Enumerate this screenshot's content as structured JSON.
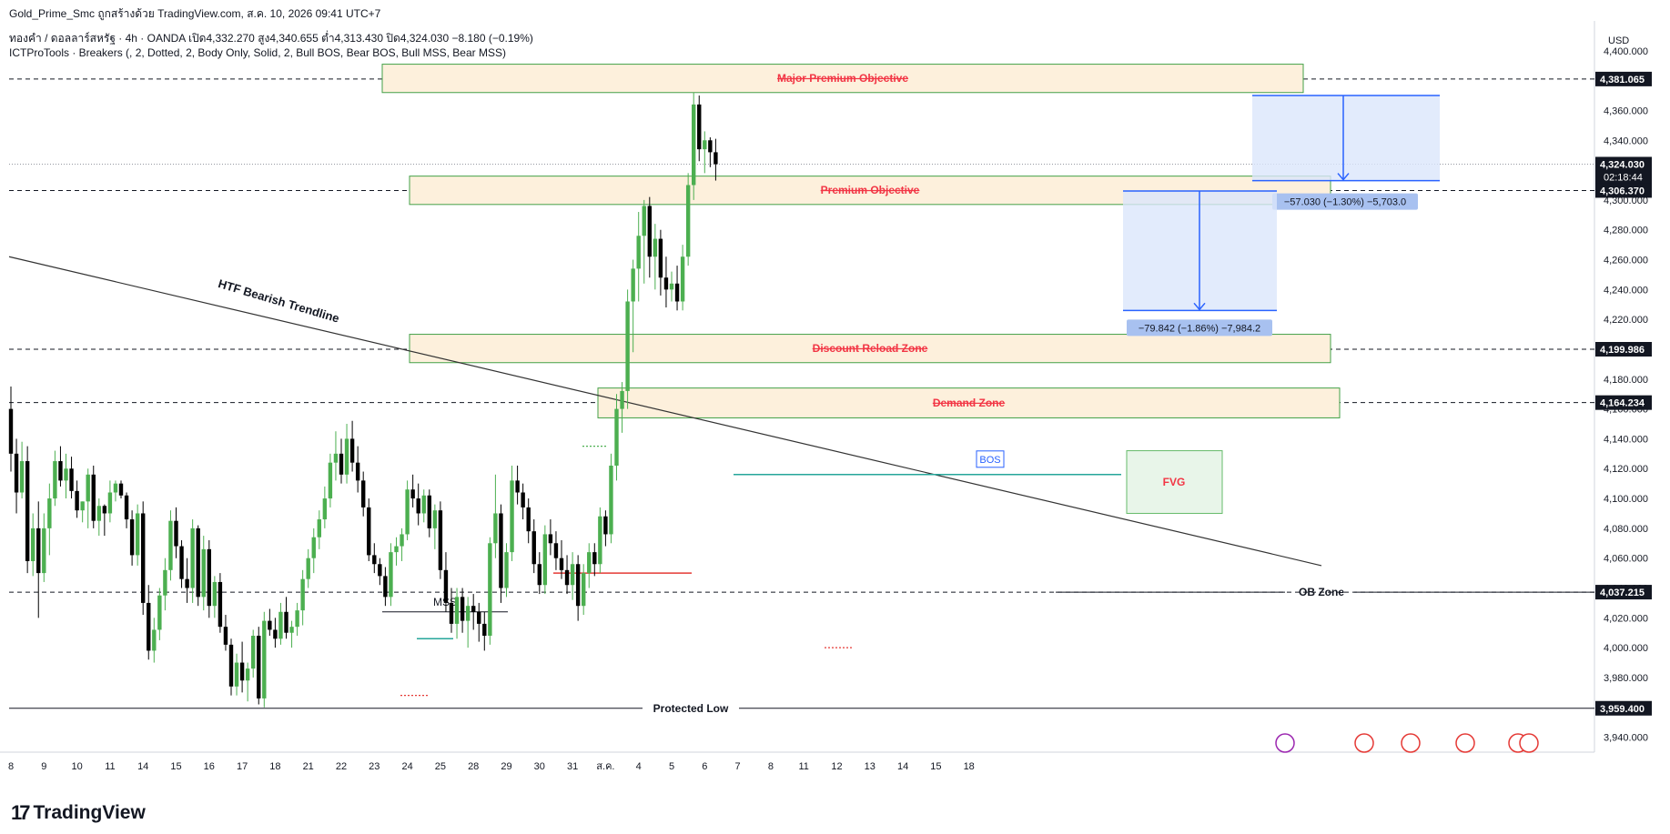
{
  "header": {
    "top_line": "Gold_Prime_Smc ถูกสร้างด้วย TradingView.com, ส.ค. 10, 2026 09:41 UTC+7",
    "symbol_line": "ทองคำ / ดอลลาร์สหรัฐ · 4h · OANDA  เปิด4,332.270  สูง4,340.655  ต่ำ4,313.430  ปิด4,324.030  −8.180 (−0.19%)",
    "indicator_line": "ICTProTools · Breakers (, 2, Dotted, 2, Body Only, Solid, 2, Bull BOS, Bear BOS, Bull MSS, Bear MSS)"
  },
  "footer": {
    "brand": "TradingView"
  },
  "colors": {
    "bull": "#4caf50",
    "bear": "#000000",
    "zone_fill": "#fdf0dc",
    "zone_border": "#43a047",
    "zone_text": "#f23645",
    "measure_fill": "#dbe6fb",
    "measure_line": "#2962ff",
    "bos": "#2962ff",
    "fvg_fill": "#e8f5e9",
    "trend_line": "#333333"
  },
  "chart_data": {
    "type": "candlestick",
    "currency": "USD",
    "ylim": [
      3930,
      4420
    ],
    "y_ticks": [
      {
        "v": 4400,
        "label": "4,400.000"
      },
      {
        "v": 4360,
        "label": "4,360.000"
      },
      {
        "v": 4340,
        "label": "4,340.000"
      },
      {
        "v": 4300,
        "label": "4,300.000"
      },
      {
        "v": 4280,
        "label": "4,280.000"
      },
      {
        "v": 4260,
        "label": "4,260.000"
      },
      {
        "v": 4240,
        "label": "4,240.000"
      },
      {
        "v": 4220,
        "label": "4,220.000"
      },
      {
        "v": 4180,
        "label": "4,180.000"
      },
      {
        "v": 4160,
        "label": "4,160.000"
      },
      {
        "v": 4140,
        "label": "4,140.000"
      },
      {
        "v": 4120,
        "label": "4,120.000"
      },
      {
        "v": 4100,
        "label": "4,100.000"
      },
      {
        "v": 4080,
        "label": "4,080.000"
      },
      {
        "v": 4060,
        "label": "4,060.000"
      },
      {
        "v": 4040,
        "label": "4,040.000"
      },
      {
        "v": 4020,
        "label": "4,020.000"
      },
      {
        "v": 4000,
        "label": "4,000.000"
      },
      {
        "v": 3980,
        "label": "3,980.000"
      },
      {
        "v": 3940,
        "label": "3,940.000"
      }
    ],
    "price_tags": [
      {
        "v": 4381.065,
        "label": "4,381.065"
      },
      {
        "v": 4324.03,
        "label": "4,324.030",
        "sub": "02:18:44"
      },
      {
        "v": 4306.37,
        "label": "4,306.370"
      },
      {
        "v": 4199.986,
        "label": "4,199.986"
      },
      {
        "v": 4164.234,
        "label": "4,164.234"
      },
      {
        "v": 4037.215,
        "label": "4,037.215"
      },
      {
        "v": 3959.4,
        "label": "3,959.400"
      }
    ],
    "x_ticks": [
      {
        "i": 0,
        "label": "8"
      },
      {
        "i": 6,
        "label": "9"
      },
      {
        "i": 12,
        "label": "10"
      },
      {
        "i": 18,
        "label": "11"
      },
      {
        "i": 24,
        "label": "14"
      },
      {
        "i": 30,
        "label": "15"
      },
      {
        "i": 36,
        "label": "16"
      },
      {
        "i": 42,
        "label": "17"
      },
      {
        "i": 48,
        "label": "18"
      },
      {
        "i": 54,
        "label": "21"
      },
      {
        "i": 60,
        "label": "22"
      },
      {
        "i": 66,
        "label": "23"
      },
      {
        "i": 72,
        "label": "24"
      },
      {
        "i": 78,
        "label": "25"
      },
      {
        "i": 84,
        "label": "28"
      },
      {
        "i": 90,
        "label": "29"
      },
      {
        "i": 96,
        "label": "30"
      },
      {
        "i": 102,
        "label": "31"
      },
      {
        "i": 108,
        "label": "ส.ค."
      },
      {
        "i": 114,
        "label": "4"
      },
      {
        "i": 120,
        "label": "5"
      },
      {
        "i": 126,
        "label": "6"
      },
      {
        "i": 132,
        "label": "7"
      },
      {
        "i": 138,
        "label": "8"
      },
      {
        "i": 144,
        "label": "11"
      },
      {
        "i": 150,
        "label": "12"
      },
      {
        "i": 156,
        "label": "13"
      },
      {
        "i": 162,
        "label": "14"
      },
      {
        "i": 168,
        "label": "15"
      },
      {
        "i": 174,
        "label": "18"
      }
    ],
    "candles": [
      [
        4160,
        4175,
        4118,
        4130
      ],
      [
        4130,
        4140,
        4090,
        4104
      ],
      [
        4104,
        4138,
        4100,
        4125
      ],
      [
        4125,
        4135,
        4050,
        4058
      ],
      [
        4058,
        4090,
        4048,
        4080
      ],
      [
        4080,
        4098,
        4020,
        4050
      ],
      [
        4050,
        4090,
        4044,
        4080
      ],
      [
        4080,
        4110,
        4062,
        4100
      ],
      [
        4100,
        4132,
        4095,
        4125
      ],
      [
        4125,
        4135,
        4108,
        4112
      ],
      [
        4112,
        4130,
        4100,
        4120
      ],
      [
        4120,
        4128,
        4100,
        4105
      ],
      [
        4105,
        4112,
        4087,
        4092
      ],
      [
        4092,
        4098,
        4084,
        4098
      ],
      [
        4098,
        4120,
        4080,
        4116
      ],
      [
        4116,
        4122,
        4080,
        4085
      ],
      [
        4085,
        4100,
        4075,
        4095
      ],
      [
        4095,
        4096,
        4075,
        4090
      ],
      [
        4090,
        4112,
        4084,
        4104
      ],
      [
        4104,
        4112,
        4098,
        4110
      ],
      [
        4110,
        4112,
        4100,
        4102
      ],
      [
        4102,
        4104,
        4080,
        4086
      ],
      [
        4086,
        4092,
        4055,
        4062
      ],
      [
        4062,
        4096,
        4055,
        4090
      ],
      [
        4090,
        4098,
        4022,
        4030
      ],
      [
        4030,
        4042,
        3992,
        3998
      ],
      [
        3998,
        4020,
        3990,
        4012
      ],
      [
        4012,
        4040,
        4005,
        4035
      ],
      [
        4035,
        4060,
        4025,
        4052
      ],
      [
        4052,
        4092,
        4045,
        4085
      ],
      [
        4085,
        4094,
        4060,
        4068
      ],
      [
        4068,
        4072,
        4040,
        4046
      ],
      [
        4046,
        4060,
        4030,
        4040
      ],
      [
        4040,
        4086,
        4030,
        4080
      ],
      [
        4080,
        4082,
        4028,
        4034
      ],
      [
        4034,
        4075,
        4025,
        4066
      ],
      [
        4066,
        4072,
        4020,
        4028
      ],
      [
        4028,
        4048,
        4020,
        4044
      ],
      [
        4044,
        4050,
        4010,
        4014
      ],
      [
        4014,
        4022,
        3998,
        4002
      ],
      [
        4002,
        4006,
        3968,
        3974
      ],
      [
        3974,
        3996,
        3968,
        3990
      ],
      [
        3990,
        4004,
        3970,
        3978
      ],
      [
        3978,
        3990,
        3964,
        3986
      ],
      [
        3986,
        4012,
        3980,
        4008
      ],
      [
        4008,
        4014,
        3962,
        3966
      ],
      [
        3966,
        4024,
        3960,
        4018
      ],
      [
        4018,
        4026,
        4008,
        4012
      ],
      [
        4012,
        4020,
        4000,
        4006
      ],
      [
        4006,
        4030,
        4002,
        4024
      ],
      [
        4024,
        4034,
        4006,
        4010
      ],
      [
        4010,
        4018,
        4000,
        4014
      ],
      [
        4014,
        4030,
        4008,
        4025
      ],
      [
        4025,
        4052,
        4015,
        4046
      ],
      [
        4046,
        4066,
        4040,
        4060
      ],
      [
        4060,
        4080,
        4050,
        4074
      ],
      [
        4074,
        4092,
        4066,
        4086
      ],
      [
        4086,
        4108,
        4080,
        4100
      ],
      [
        4100,
        4130,
        4094,
        4124
      ],
      [
        4124,
        4145,
        4112,
        4130
      ],
      [
        4130,
        4140,
        4110,
        4116
      ],
      [
        4116,
        4150,
        4110,
        4140
      ],
      [
        4140,
        4152,
        4118,
        4124
      ],
      [
        4124,
        4135,
        4104,
        4112
      ],
      [
        4112,
        4118,
        4088,
        4094
      ],
      [
        4094,
        4100,
        4058,
        4062
      ],
      [
        4062,
        4070,
        4050,
        4056
      ],
      [
        4056,
        4060,
        4042,
        4048
      ],
      [
        4048,
        4054,
        4028,
        4034
      ],
      [
        4034,
        4070,
        4028,
        4064
      ],
      [
        4064,
        4074,
        4055,
        4068
      ],
      [
        4068,
        4080,
        4058,
        4076
      ],
      [
        4076,
        4112,
        4072,
        4106
      ],
      [
        4106,
        4116,
        4094,
        4100
      ],
      [
        4100,
        4110,
        4082,
        4090
      ],
      [
        4090,
        4106,
        4084,
        4102
      ],
      [
        4102,
        4106,
        4074,
        4080
      ],
      [
        4080,
        4096,
        4066,
        4092
      ],
      [
        4092,
        4098,
        4046,
        4052
      ],
      [
        4052,
        4064,
        4024,
        4030
      ],
      [
        4030,
        4040,
        4010,
        4016
      ],
      [
        4016,
        4040,
        4006,
        4034
      ],
      [
        4034,
        4040,
        4010,
        4018
      ],
      [
        4018,
        4034,
        4000,
        4028
      ],
      [
        4028,
        4036,
        4012,
        4024
      ],
      [
        4024,
        4030,
        4004,
        4016
      ],
      [
        4016,
        4024,
        3998,
        4008
      ],
      [
        4008,
        4074,
        4002,
        4070
      ],
      [
        4070,
        4116,
        4060,
        4090
      ],
      [
        4090,
        4096,
        4030,
        4040
      ],
      [
        4040,
        4070,
        4034,
        4064
      ],
      [
        4064,
        4122,
        4058,
        4112
      ],
      [
        4112,
        4122,
        4096,
        4104
      ],
      [
        4104,
        4110,
        4086,
        4094
      ],
      [
        4094,
        4100,
        4070,
        4078
      ],
      [
        4078,
        4086,
        4050,
        4056
      ],
      [
        4056,
        4064,
        4036,
        4042
      ],
      [
        4042,
        4082,
        4036,
        4076
      ],
      [
        4076,
        4086,
        4062,
        4070
      ],
      [
        4070,
        4078,
        4052,
        4060
      ],
      [
        4060,
        4072,
        4046,
        4052
      ],
      [
        4052,
        4062,
        4036,
        4042
      ],
      [
        4042,
        4064,
        4032,
        4056
      ],
      [
        4056,
        4062,
        4018,
        4028
      ],
      [
        4028,
        4056,
        4022,
        4050
      ],
      [
        4050,
        4070,
        4040,
        4064
      ],
      [
        4064,
        4070,
        4048,
        4056
      ],
      [
        4056,
        4094,
        4050,
        4088
      ],
      [
        4088,
        4092,
        4068,
        4076
      ],
      [
        4076,
        4130,
        4070,
        4122
      ],
      [
        4122,
        4170,
        4112,
        4160
      ],
      [
        4160,
        4178,
        4144,
        4172
      ],
      [
        4172,
        4240,
        4160,
        4232
      ],
      [
        4232,
        4260,
        4198,
        4254
      ],
      [
        4254,
        4292,
        4232,
        4276
      ],
      [
        4276,
        4300,
        4244,
        4296
      ],
      [
        4296,
        4302,
        4248,
        4262
      ],
      [
        4262,
        4284,
        4240,
        4274
      ],
      [
        4274,
        4280,
        4236,
        4248
      ],
      [
        4248,
        4262,
        4228,
        4240
      ],
      [
        4240,
        4252,
        4232,
        4244
      ],
      [
        4244,
        4256,
        4226,
        4232
      ],
      [
        4232,
        4270,
        4226,
        4262
      ],
      [
        4262,
        4318,
        4256,
        4310
      ],
      [
        4310,
        4372,
        4300,
        4364
      ],
      [
        4364,
        4370,
        4326,
        4334
      ],
      [
        4334,
        4346,
        4318,
        4340
      ],
      [
        4340,
        4342,
        4322,
        4332
      ],
      [
        4332,
        4341,
        4313,
        4324
      ]
    ],
    "zones": [
      {
        "label": "Major Premium Objective",
        "top": 4391,
        "bottom": 4372
      },
      {
        "label": "Premium Objective",
        "top": 4316,
        "bottom": 4297
      },
      {
        "label": "Discount Reload Zone",
        "top": 4210,
        "bottom": 4191
      },
      {
        "label": "Demand Zone",
        "top": 4174,
        "bottom": 4154
      }
    ],
    "measures": [
      {
        "label": "−57.030 (−1.30%) −5,703.0",
        "high": 4370,
        "low": 4313
      },
      {
        "label": "−79.842 (−1.86%) −7,984.2",
        "high": 4306,
        "low": 4226
      }
    ],
    "annotations": {
      "trendline": "HTF Bearish Trendline",
      "bos": "BOS",
      "fvg": "FVG",
      "mss": "MSS",
      "ob_zone": "OB Zone",
      "protected_low": "Protected Low"
    }
  }
}
